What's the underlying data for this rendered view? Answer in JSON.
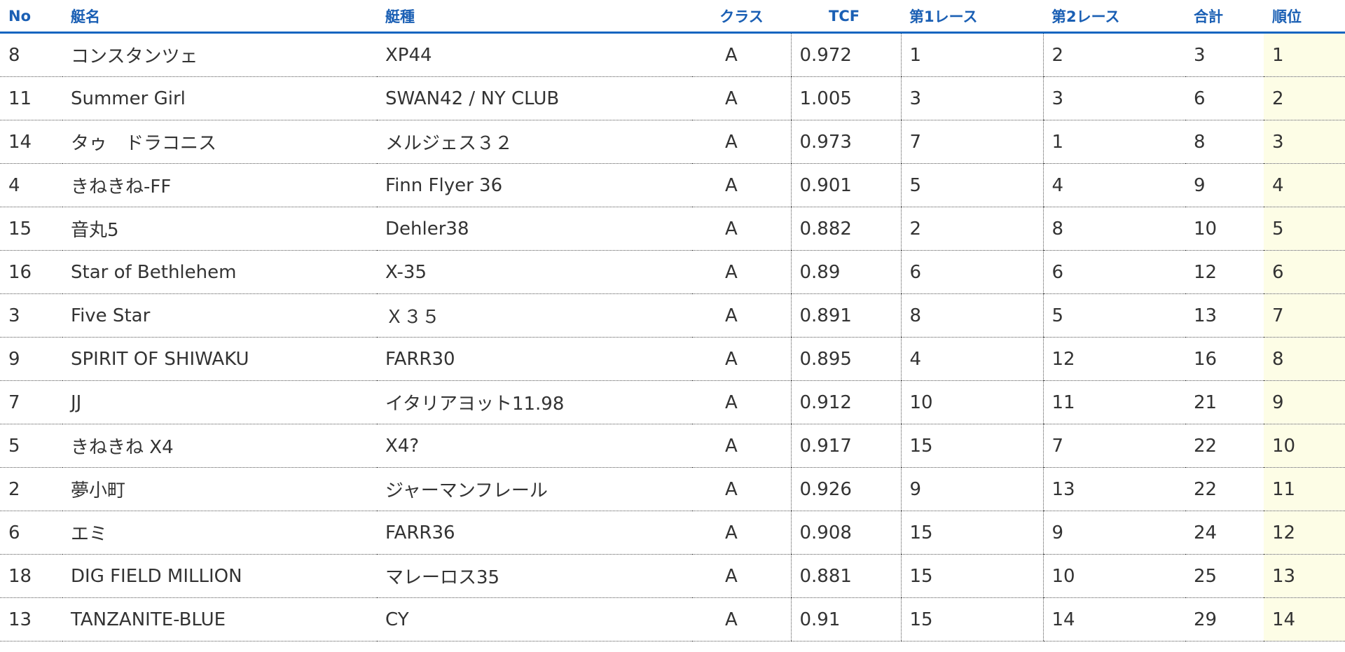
{
  "table": {
    "headers": {
      "no": "No",
      "name": "艇名",
      "type": "艇種",
      "class": "クラス",
      "tcf": "TCF",
      "race1": "第1レース",
      "race2": "第2レース",
      "total": "合計",
      "rank": "順位"
    },
    "rows": [
      {
        "no": "8",
        "name": "コンスタンツェ",
        "type": "XP44",
        "class": "A",
        "tcf": "0.972",
        "race1": "1",
        "race2": "2",
        "total": "3",
        "rank": "1"
      },
      {
        "no": "11",
        "name": "Summer Girl",
        "type": "SWAN42 / NY CLUB",
        "class": "A",
        "tcf": "1.005",
        "race1": "3",
        "race2": "3",
        "total": "6",
        "rank": "2"
      },
      {
        "no": "14",
        "name": "タゥ　ドラコニス",
        "type": "メルジェス３２",
        "class": "A",
        "tcf": "0.973",
        "race1": "7",
        "race2": "1",
        "total": "8",
        "rank": "3"
      },
      {
        "no": "4",
        "name": "きねきね-FF",
        "type": "Finn Flyer 36",
        "class": "A",
        "tcf": "0.901",
        "race1": "5",
        "race2": "4",
        "total": "9",
        "rank": "4"
      },
      {
        "no": "15",
        "name": "音丸5",
        "type": "Dehler38",
        "class": "A",
        "tcf": "0.882",
        "race1": "2",
        "race2": "8",
        "total": "10",
        "rank": "5"
      },
      {
        "no": "16",
        "name": "Star of Bethlehem",
        "type": "X-35",
        "class": "A",
        "tcf": "0.89",
        "race1": "6",
        "race2": "6",
        "total": "12",
        "rank": "6"
      },
      {
        "no": "3",
        "name": "Five Star",
        "type": "Ｘ３５",
        "class": "A",
        "tcf": "0.891",
        "race1": "8",
        "race2": "5",
        "total": "13",
        "rank": "7"
      },
      {
        "no": "9",
        "name": "SPIRIT OF SHIWAKU",
        "type": "FARR30",
        "class": "A",
        "tcf": "0.895",
        "race1": "4",
        "race2": "12",
        "total": "16",
        "rank": "8"
      },
      {
        "no": "7",
        "name": "JJ",
        "type": "イタリアヨット11.98",
        "class": "A",
        "tcf": "0.912",
        "race1": "10",
        "race2": "11",
        "total": "21",
        "rank": "9"
      },
      {
        "no": "5",
        "name": "きねきね X4",
        "type": "X4?",
        "class": "A",
        "tcf": "0.917",
        "race1": "15",
        "race2": "7",
        "total": "22",
        "rank": "10"
      },
      {
        "no": "2",
        "name": "夢小町",
        "type": "ジャーマンフレール",
        "class": "A",
        "tcf": "0.926",
        "race1": "9",
        "race2": "13",
        "total": "22",
        "rank": "11"
      },
      {
        "no": "6",
        "name": "エミ",
        "type": "FARR36",
        "class": "A",
        "tcf": "0.908",
        "race1": "15",
        "race2": "9",
        "total": "24",
        "rank": "12"
      },
      {
        "no": "18",
        "name": "DIG FIELD MILLION",
        "type": "マレーロス35",
        "class": "A",
        "tcf": "0.881",
        "race1": "15",
        "race2": "10",
        "total": "25",
        "rank": "13"
      },
      {
        "no": "13",
        "name": "TANZANITE-BLUE",
        "type": "CY",
        "class": "A",
        "tcf": "0.91",
        "race1": "15",
        "race2": "14",
        "total": "29",
        "rank": "14"
      }
    ]
  },
  "colors": {
    "header_text": "#1a5fb4",
    "header_rule": "#1565c0",
    "rank_column_bg": "#fdfde6"
  }
}
